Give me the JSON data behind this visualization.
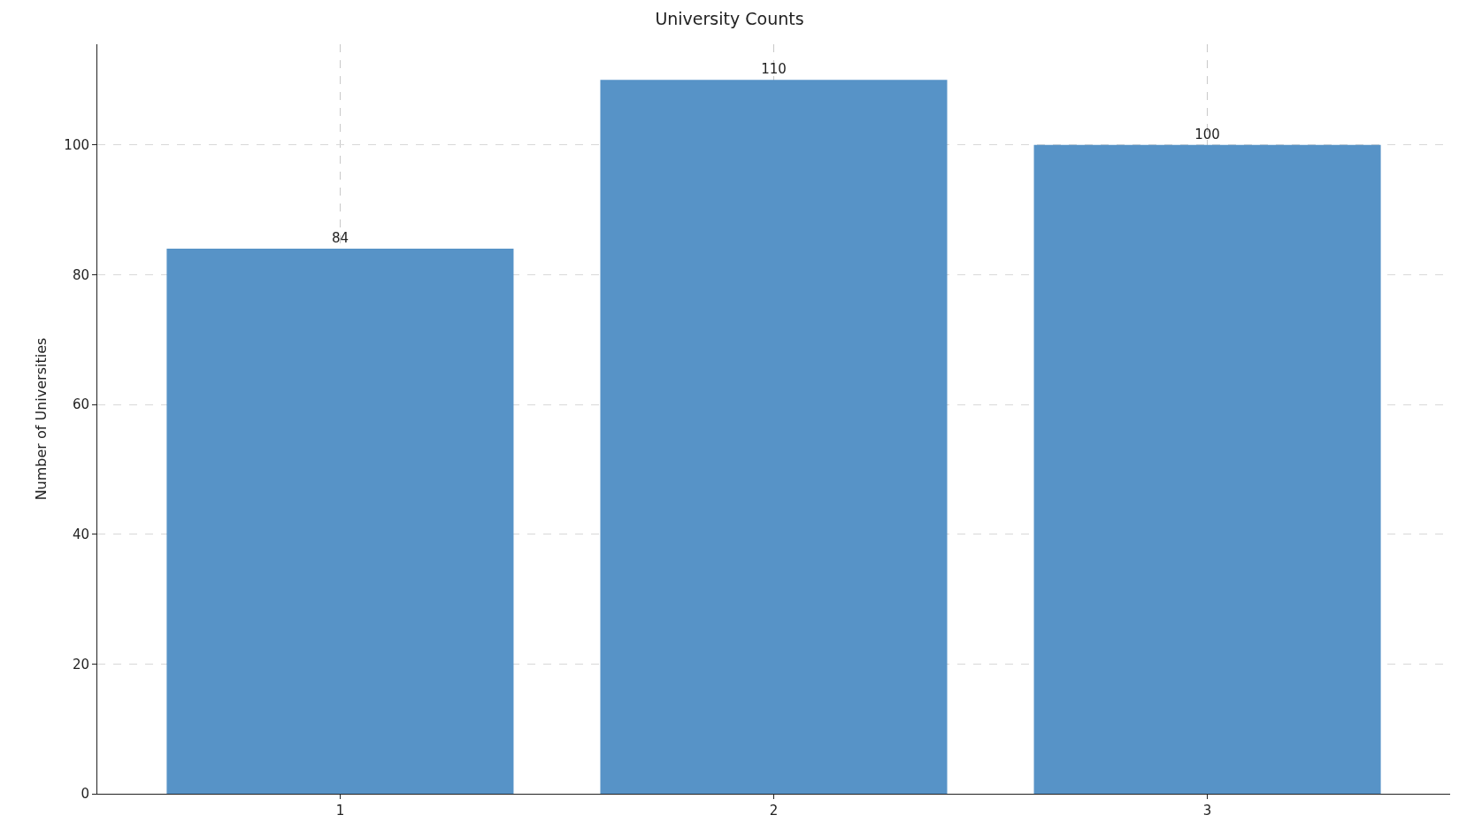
{
  "chart_data": {
    "type": "bar",
    "title": "University Counts",
    "ylabel": "Number of Universities",
    "categories": [
      "1",
      "2",
      "3"
    ],
    "values": [
      84,
      110,
      100
    ],
    "color": "#5793c7",
    "ylim": [
      0,
      115.5
    ],
    "yticks": [
      0,
      20,
      40,
      60,
      80,
      100
    ],
    "grid": true,
    "data_labels": true
  }
}
